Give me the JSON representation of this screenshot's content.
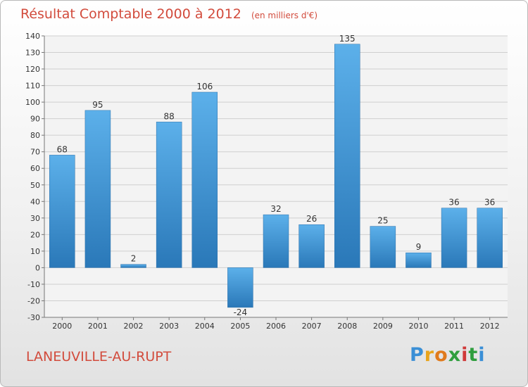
{
  "chart_data": {
    "type": "bar",
    "title": "Résultat Comptable 2000 à 2012",
    "subtitle": "(en milliers d'€)",
    "categories": [
      "2000",
      "2001",
      "2002",
      "2003",
      "2004",
      "2005",
      "2006",
      "2007",
      "2008",
      "2009",
      "2010",
      "2011",
      "2012"
    ],
    "values": [
      68,
      95,
      2,
      88,
      106,
      -24,
      32,
      26,
      135,
      25,
      9,
      36,
      36
    ],
    "ylim": [
      -30,
      140
    ],
    "ytick_step": 10,
    "grid": true,
    "xlabel": "",
    "ylabel": "",
    "bar_color": "#3a8fd1"
  },
  "town_name": "LANEUVILLE-AU-RUPT",
  "logo": {
    "letters": [
      "P",
      "r",
      "o",
      "x",
      "i",
      "t",
      "i"
    ],
    "colors": [
      "#3a8fd6",
      "#e8a41c",
      "#e07a1c",
      "#2f9e3e",
      "#d03a3a",
      "#2f9e3e",
      "#3a8fd6"
    ]
  }
}
